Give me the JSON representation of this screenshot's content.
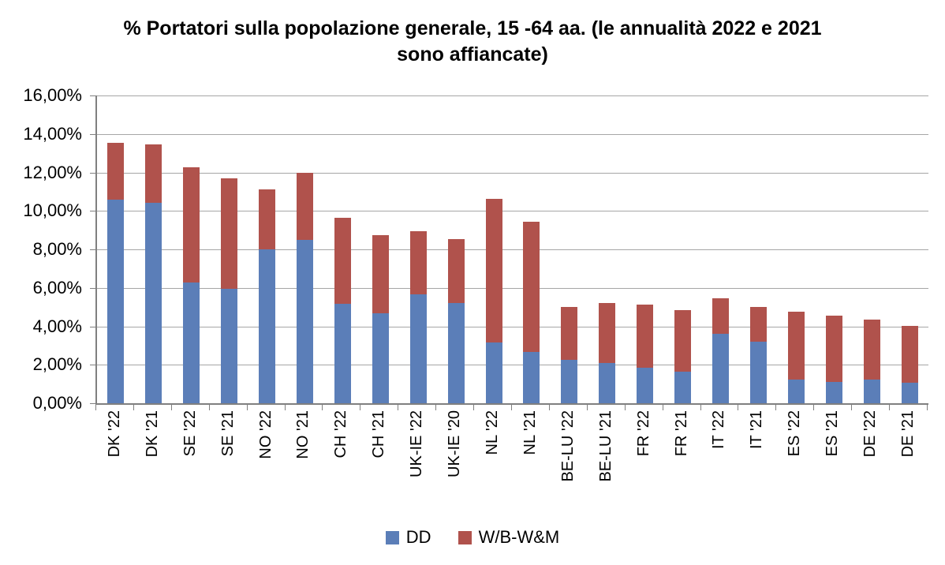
{
  "title": {
    "line1": "% Portatori sulla popolazione generale, 15 -64 aa. (le annualità 2022 e 2021",
    "line2": "sono affiancate)"
  },
  "chart_data": {
    "type": "bar",
    "subtype": "stacked",
    "title": "% Portatori sulla popolazione generale, 15 -64 aa. (le annualità 2022 e 2021 sono affiancate)",
    "categories": [
      "DK '22",
      "DK '21",
      "SE '22",
      "SE '21",
      "NO '22",
      "NO '21",
      "CH '22",
      "CH '21",
      "UK-IE '22",
      "UK-IE '20",
      "NL '22",
      "NL '21",
      "BE-LU '22",
      "BE-LU '21",
      "FR '22",
      "FR '21",
      "IT '22",
      "IT '21",
      "ES '22",
      "ES '21",
      "DE '22",
      "DE '21"
    ],
    "series": [
      {
        "name": "DD",
        "color": "#5B7EB8",
        "values": [
          10.57,
          10.43,
          6.28,
          5.94,
          8.0,
          8.49,
          5.15,
          4.68,
          5.67,
          5.23,
          3.15,
          2.65,
          2.25,
          2.11,
          1.84,
          1.64,
          3.61,
          3.2,
          1.22,
          1.12,
          1.25,
          1.08
        ]
      },
      {
        "name": "W/B-W&M",
        "color": "#B0524C",
        "values": [
          2.98,
          3.03,
          6.0,
          5.75,
          3.12,
          3.51,
          4.5,
          4.08,
          3.26,
          3.29,
          7.48,
          6.8,
          2.77,
          3.12,
          3.28,
          3.21,
          1.83,
          1.79,
          3.53,
          3.43,
          3.1,
          2.94
        ]
      }
    ],
    "ylim": [
      0,
      16
    ],
    "ytick_step": 2,
    "ytick_labels": [
      "0,00%",
      "2,00%",
      "4,00%",
      "6,00%",
      "8,00%",
      "10,00%",
      "12,00%",
      "14,00%",
      "16,00%"
    ],
    "xlabel": "",
    "ylabel": "",
    "grid": true,
    "legend_position": "bottom",
    "gridline_color": "#A6A6A6",
    "axis_color": "#808080",
    "background": "#FFFFFF"
  },
  "legend": {
    "items": [
      {
        "label": "DD",
        "color": "#5B7EB8"
      },
      {
        "label": "W/B-W&M",
        "color": "#B0524C"
      }
    ]
  }
}
